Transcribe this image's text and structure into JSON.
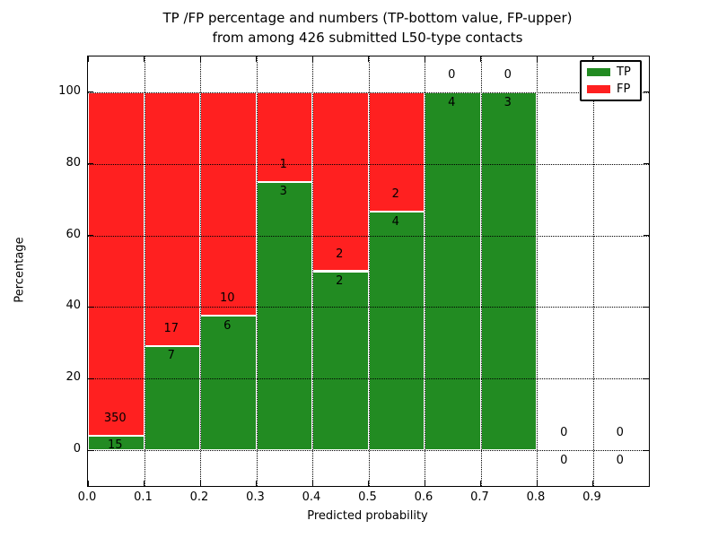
{
  "chart_data": {
    "type": "bar",
    "stacked": true,
    "orientation": "vertical",
    "title_lines": [
      "TP /FP percentage and numbers (TP-bottom value, FP-upper)",
      "from among 426 submitted L50-type contacts"
    ],
    "total_contacts": 426,
    "xlabel": "Predicted probability",
    "ylabel": "Percentage",
    "xlim": [
      0.0,
      1.0
    ],
    "ylim": [
      -10,
      110
    ],
    "x_ticks": [
      {
        "value": 0.0,
        "label": "0.0"
      },
      {
        "value": 0.1,
        "label": "0.1"
      },
      {
        "value": 0.2,
        "label": "0.2"
      },
      {
        "value": 0.3,
        "label": "0.3"
      },
      {
        "value": 0.4,
        "label": "0.4"
      },
      {
        "value": 0.5,
        "label": "0.5"
      },
      {
        "value": 0.6,
        "label": "0.6"
      },
      {
        "value": 0.7,
        "label": "0.7"
      },
      {
        "value": 0.8,
        "label": "0.8"
      },
      {
        "value": 0.9,
        "label": "0.9"
      }
    ],
    "y_ticks": [
      {
        "value": 0,
        "label": "0"
      },
      {
        "value": 20,
        "label": "20"
      },
      {
        "value": 40,
        "label": "40"
      },
      {
        "value": 60,
        "label": "60"
      },
      {
        "value": 80,
        "label": "80"
      },
      {
        "value": 100,
        "label": "100"
      }
    ],
    "grid": true,
    "grid_style": "dotted",
    "legend": {
      "position": "upper right",
      "entries": [
        {
          "label": "TP",
          "color": "#228B22"
        },
        {
          "label": "FP",
          "color": "#FF2020"
        }
      ]
    },
    "colors": {
      "tp": "#228B22",
      "fp": "#FF2020",
      "bar_edge": "#ffffff"
    },
    "bins": [
      {
        "range": [
          0.0,
          0.1
        ],
        "tp": 15,
        "fp": 350,
        "tp_pct": 4.1,
        "fp_label": "350",
        "tp_label": "15"
      },
      {
        "range": [
          0.1,
          0.2
        ],
        "tp": 7,
        "fp": 17,
        "tp_pct": 29.2,
        "fp_label": "17",
        "tp_label": "7"
      },
      {
        "range": [
          0.2,
          0.3
        ],
        "tp": 6,
        "fp": 10,
        "tp_pct": 37.5,
        "fp_label": "10",
        "tp_label": "6"
      },
      {
        "range": [
          0.3,
          0.4
        ],
        "tp": 3,
        "fp": 1,
        "tp_pct": 75.0,
        "fp_label": "1",
        "tp_label": "3"
      },
      {
        "range": [
          0.4,
          0.5
        ],
        "tp": 2,
        "fp": 2,
        "tp_pct": 50.0,
        "fp_label": "2",
        "tp_label": "2"
      },
      {
        "range": [
          0.5,
          0.6
        ],
        "tp": 4,
        "fp": 2,
        "tp_pct": 66.7,
        "fp_label": "2",
        "tp_label": "4"
      },
      {
        "range": [
          0.6,
          0.7
        ],
        "tp": 4,
        "fp": 0,
        "tp_pct": 100.0,
        "fp_label": "0",
        "tp_label": "4"
      },
      {
        "range": [
          0.7,
          0.8
        ],
        "tp": 3,
        "fp": 0,
        "tp_pct": 100.0,
        "fp_label": "0",
        "tp_label": "3"
      },
      {
        "range": [
          0.8,
          0.9
        ],
        "tp": 0,
        "fp": 0,
        "tp_pct": 0,
        "fp_label": "0",
        "tp_label": "0"
      },
      {
        "range": [
          0.9,
          1.0
        ],
        "tp": 0,
        "fp": 0,
        "tp_pct": 0,
        "fp_label": "0",
        "tp_label": "0"
      }
    ]
  }
}
